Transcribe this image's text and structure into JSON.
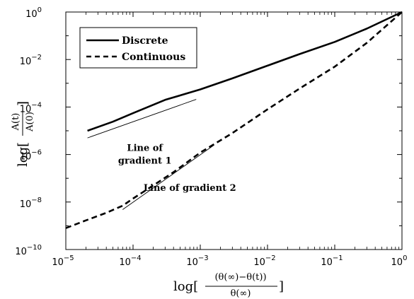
{
  "chart_data": {
    "type": "line",
    "x_scale": "log",
    "y_scale": "log",
    "xlim": [
      1e-05,
      1
    ],
    "ylim": [
      1e-10,
      1
    ],
    "x_ticks": [
      {
        "base": "10",
        "exp": "−5",
        "value": 1e-05
      },
      {
        "base": "10",
        "exp": "−4",
        "value": 0.0001
      },
      {
        "base": "10",
        "exp": "−3",
        "value": 0.001
      },
      {
        "base": "10",
        "exp": "−2",
        "value": 0.01
      },
      {
        "base": "10",
        "exp": "−1",
        "value": 0.1
      },
      {
        "base": "10",
        "exp": "0",
        "value": 1
      }
    ],
    "y_ticks": [
      {
        "base": "10",
        "exp": "−10",
        "value": 1e-10
      },
      {
        "base": "10",
        "exp": "−8",
        "value": 1e-08
      },
      {
        "base": "10",
        "exp": "−6",
        "value": 1e-06
      },
      {
        "base": "10",
        "exp": "−4",
        "value": 0.0001
      },
      {
        "base": "10",
        "exp": "−2",
        "value": 0.01
      },
      {
        "base": "10",
        "exp": "0",
        "value": 1
      }
    ],
    "xlabel": {
      "prefix": "log[",
      "numerator": "(θ(∞)−θ(t))",
      "denominator": "θ(∞)",
      "suffix": "]"
    },
    "ylabel": {
      "prefix": "log[",
      "numerator": "A(t)",
      "denominator": "A(0)",
      "suffix": "]"
    },
    "grid": false,
    "legend_position": "top-left",
    "series": [
      {
        "name": "Discrete",
        "style": "solid",
        "x": [
          2.1e-05,
          5e-05,
          0.0001,
          0.0003,
          0.001,
          0.003,
          0.01,
          0.03,
          0.1,
          0.3,
          1
        ],
        "y": [
          1e-05,
          2.4e-05,
          5.5e-05,
          0.0002,
          0.00055,
          0.0016,
          0.0055,
          0.017,
          0.055,
          0.2,
          1
        ]
      },
      {
        "name": "Continuous",
        "style": "dashed",
        "x": [
          1e-05,
          2e-05,
          4e-05,
          7e-05,
          0.0001,
          0.0002,
          0.0004,
          0.001,
          0.003,
          0.01,
          0.03,
          0.1,
          0.3,
          1
        ],
        "y": [
          8e-10,
          1.7e-09,
          3.5e-09,
          7e-09,
          1.4e-08,
          5e-08,
          1.8e-07,
          1.2e-06,
          8e-06,
          8e-05,
          0.0006,
          0.005,
          0.05,
          1
        ]
      }
    ],
    "reference_lines": [
      {
        "label": "Line of gradient 1",
        "gradient": 1,
        "x": [
          2.1e-05,
          0.00087
        ],
        "y": [
          5e-06,
          0.00021
        ]
      },
      {
        "label": "Line of gradient 2",
        "gradient": 2,
        "x": [
          7e-05,
          0.0016
        ],
        "y": [
          4.8e-09,
          2.5e-06
        ]
      }
    ],
    "annotations": [
      {
        "lines": [
          "Line of",
          "gradient 1"
        ],
        "x": 0.00015,
        "y": 1.4e-06
      },
      {
        "lines": [
          "Line of gradient 2"
        ],
        "x": 0.0007,
        "y": 3e-08
      }
    ]
  }
}
